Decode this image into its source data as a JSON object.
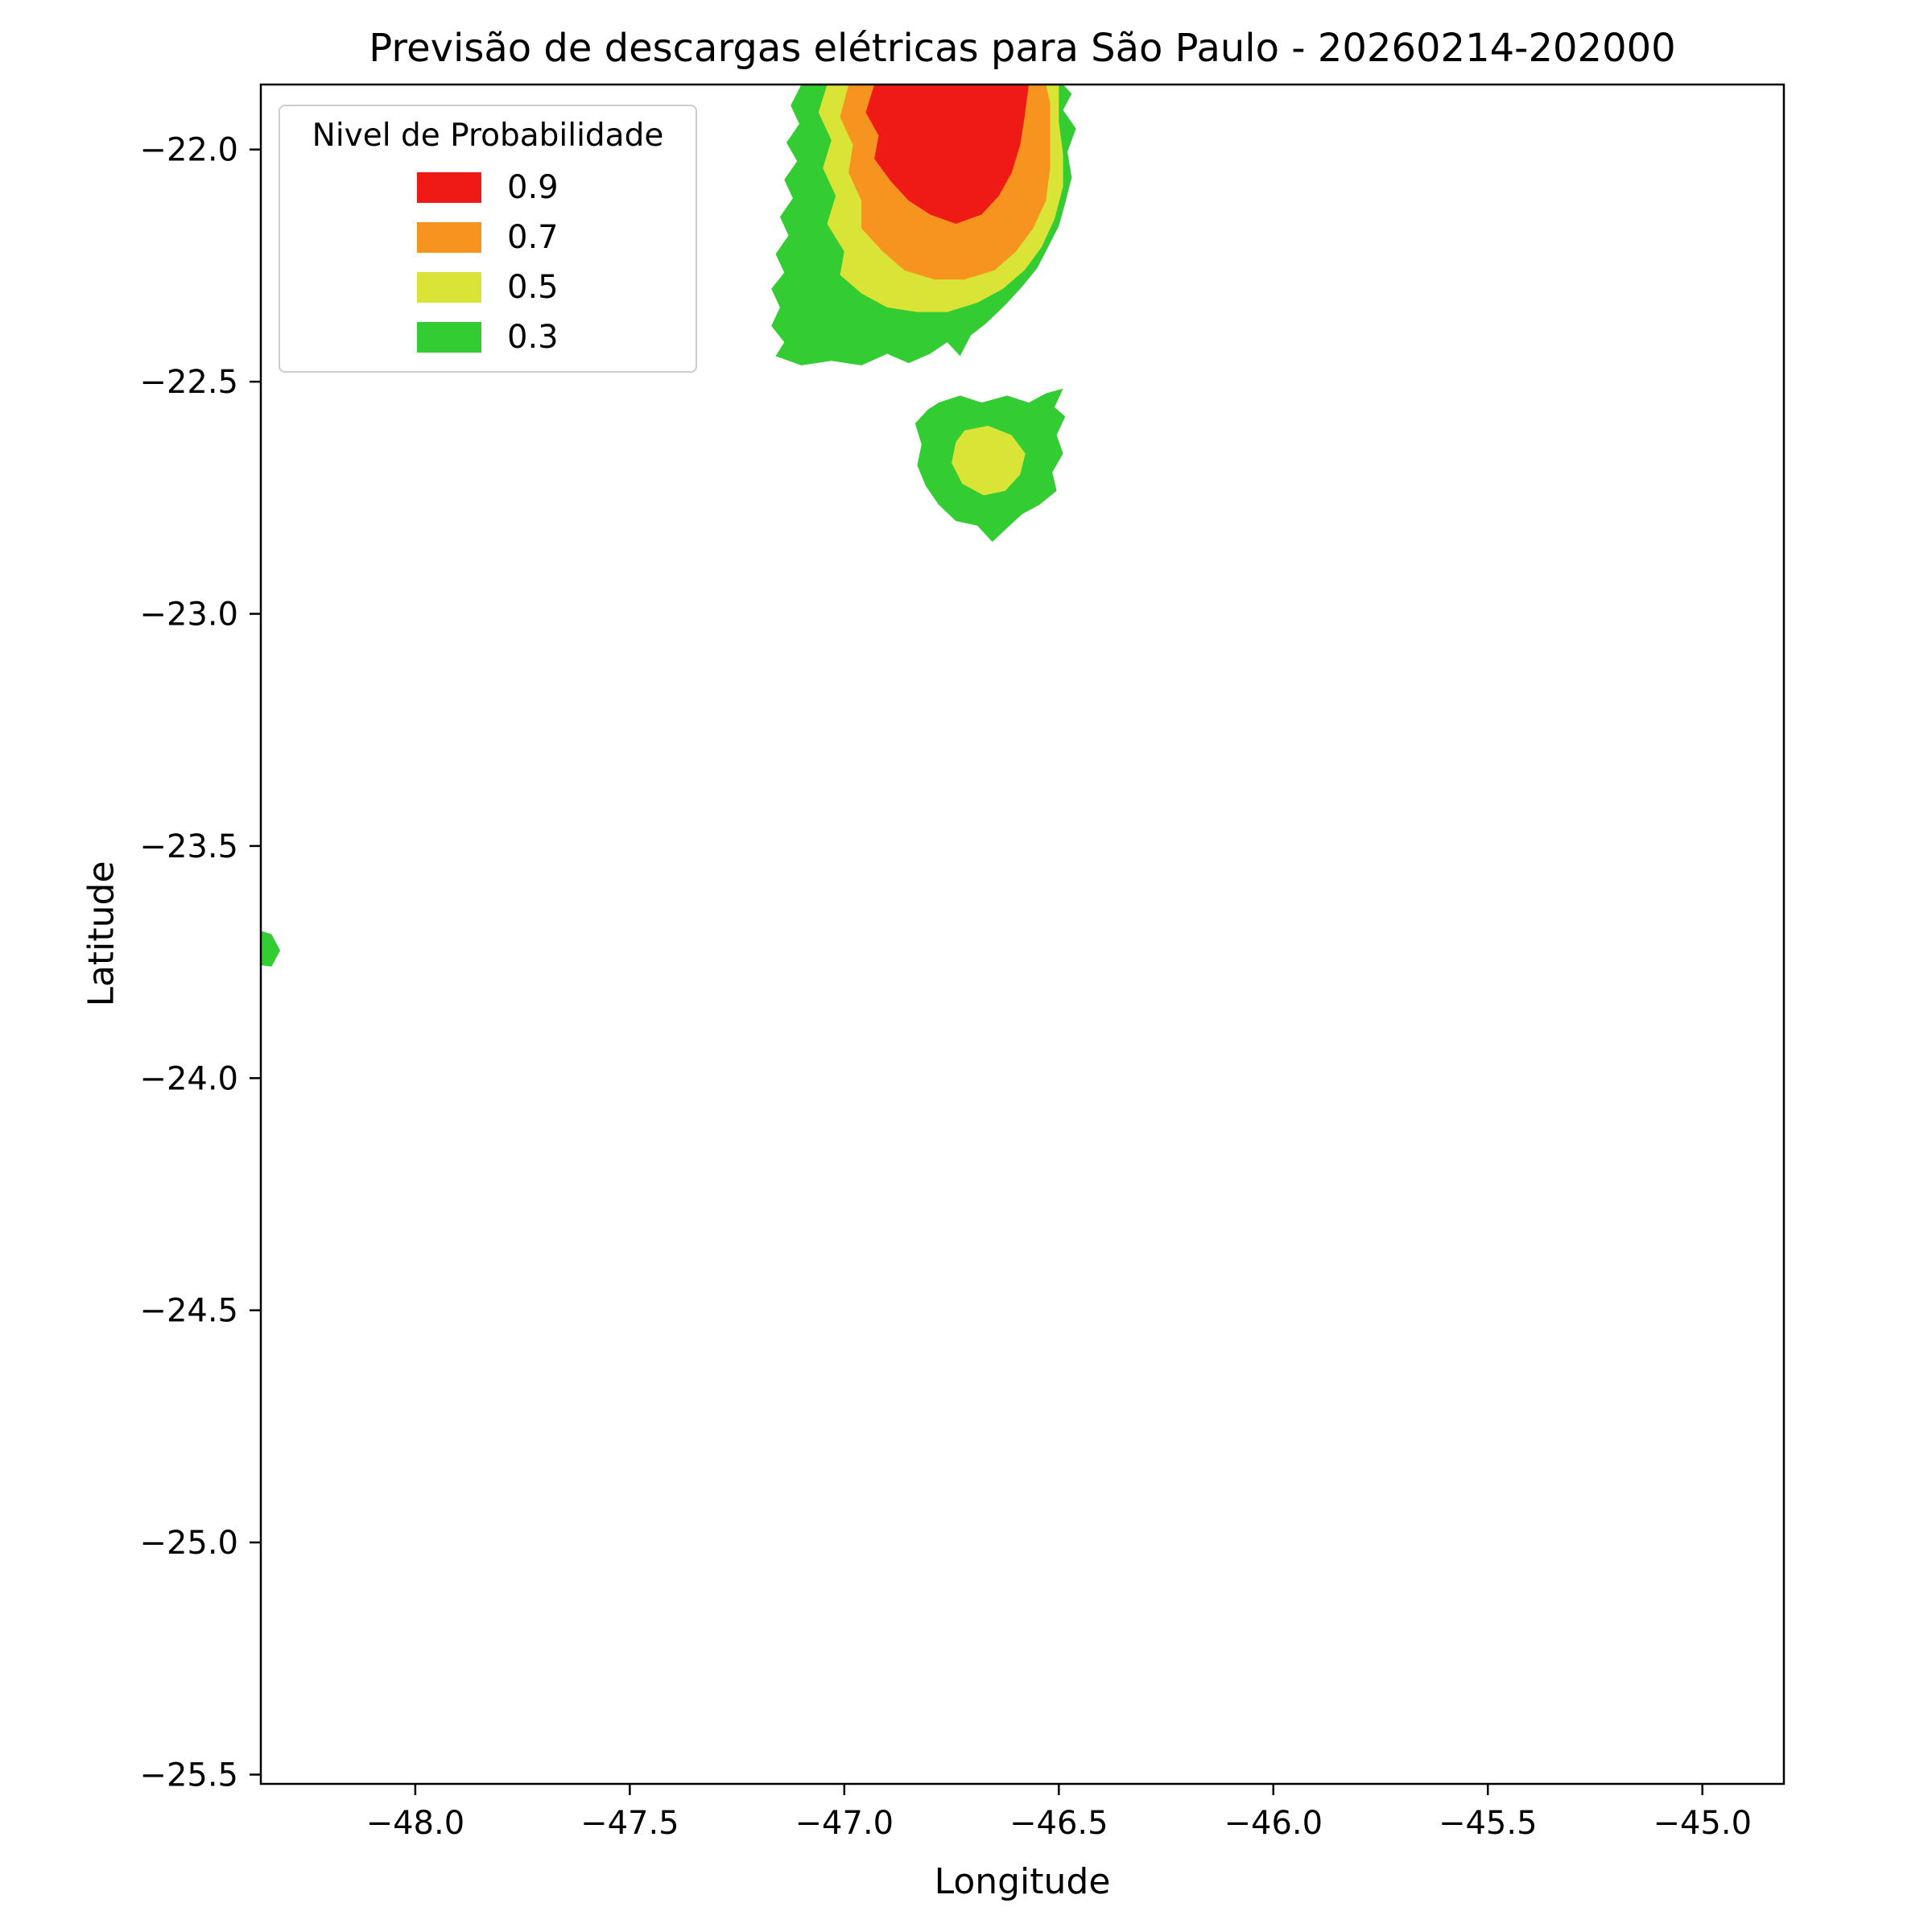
{
  "legend": {
    "title": "Nivel de Probabilidade",
    "position": "upper left",
    "items": [
      {
        "label": "0.9",
        "color": "#ef1a15"
      },
      {
        "label": "0.7",
        "color": "#f7941f"
      },
      {
        "label": "0.5",
        "color": "#d9e437"
      },
      {
        "label": "0.3",
        "color": "#33cc33"
      }
    ]
  },
  "chart_data": {
    "type": "area",
    "subtype": "filled_contour_map",
    "title": "Previsão de descargas elétricas para São Paulo - 20260214-202000",
    "xlabel": "Longitude",
    "ylabel": "Latitude",
    "xlim": [
      -48.36,
      -44.81
    ],
    "ylim": [
      -25.52,
      -21.86
    ],
    "grid": false,
    "frame_color": "#000000",
    "levels": [
      0.3,
      0.5,
      0.7,
      0.9
    ],
    "xticks": [
      {
        "v": -48.0,
        "label": "−48.0"
      },
      {
        "v": -47.5,
        "label": "−47.5"
      },
      {
        "v": -47.0,
        "label": "−47.0"
      },
      {
        "v": -46.5,
        "label": "−46.5"
      },
      {
        "v": -46.0,
        "label": "−46.0"
      },
      {
        "v": -45.5,
        "label": "−45.5"
      },
      {
        "v": -45.0,
        "label": "−45.0"
      }
    ],
    "yticks": [
      {
        "v": -22.0,
        "label": "−22.0"
      },
      {
        "v": -22.5,
        "label": "−22.5"
      },
      {
        "v": -23.0,
        "label": "−23.0"
      },
      {
        "v": -23.5,
        "label": "−23.5"
      },
      {
        "v": -24.0,
        "label": "−24.0"
      },
      {
        "v": -24.5,
        "label": "−24.5"
      },
      {
        "v": -25.0,
        "label": "−25.0"
      },
      {
        "v": -25.5,
        "label": "−25.5"
      }
    ],
    "regions": [
      {
        "name": "main-cell-p03",
        "level": 0.3,
        "color": "#33cc33",
        "points": [
          [
            -47.1,
            -21.86
          ],
          [
            -47.125,
            -21.905
          ],
          [
            -47.105,
            -21.945
          ],
          [
            -47.135,
            -21.985
          ],
          [
            -47.11,
            -22.025
          ],
          [
            -47.14,
            -22.065
          ],
          [
            -47.12,
            -22.105
          ],
          [
            -47.15,
            -22.145
          ],
          [
            -47.13,
            -22.185
          ],
          [
            -47.16,
            -22.225
          ],
          [
            -47.14,
            -22.265
          ],
          [
            -47.17,
            -22.3
          ],
          [
            -47.15,
            -22.34
          ],
          [
            -47.17,
            -22.38
          ],
          [
            -47.14,
            -22.415
          ],
          [
            -47.16,
            -22.445
          ],
          [
            -47.1,
            -22.465
          ],
          [
            -47.03,
            -22.455
          ],
          [
            -46.96,
            -22.465
          ],
          [
            -46.9,
            -22.44
          ],
          [
            -46.85,
            -22.46
          ],
          [
            -46.8,
            -22.44
          ],
          [
            -46.76,
            -22.415
          ],
          [
            -46.73,
            -22.445
          ],
          [
            -46.705,
            -22.4
          ],
          [
            -46.67,
            -22.375
          ],
          [
            -46.625,
            -22.335
          ],
          [
            -46.585,
            -22.295
          ],
          [
            -46.55,
            -22.255
          ],
          [
            -46.525,
            -22.21
          ],
          [
            -46.5,
            -22.165
          ],
          [
            -46.485,
            -22.115
          ],
          [
            -46.47,
            -22.06
          ],
          [
            -46.48,
            -22.005
          ],
          [
            -46.46,
            -21.955
          ],
          [
            -46.49,
            -21.915
          ],
          [
            -46.47,
            -21.88
          ],
          [
            -46.49,
            -21.86
          ]
        ]
      },
      {
        "name": "main-cell-p05",
        "level": 0.5,
        "color": "#d9e437",
        "points": [
          [
            -47.04,
            -21.86
          ],
          [
            -47.06,
            -21.92
          ],
          [
            -47.03,
            -21.98
          ],
          [
            -47.05,
            -22.04
          ],
          [
            -47.02,
            -22.1
          ],
          [
            -47.04,
            -22.16
          ],
          [
            -47.0,
            -22.22
          ],
          [
            -47.01,
            -22.27
          ],
          [
            -46.96,
            -22.31
          ],
          [
            -46.9,
            -22.34
          ],
          [
            -46.83,
            -22.35
          ],
          [
            -46.76,
            -22.35
          ],
          [
            -46.69,
            -22.33
          ],
          [
            -46.63,
            -22.3
          ],
          [
            -46.58,
            -22.26
          ],
          [
            -46.54,
            -22.21
          ],
          [
            -46.51,
            -22.15
          ],
          [
            -46.49,
            -22.08
          ],
          [
            -46.49,
            -22.01
          ],
          [
            -46.5,
            -21.94
          ],
          [
            -46.5,
            -21.86
          ]
        ]
      },
      {
        "name": "main-cell-p07",
        "level": 0.7,
        "color": "#f7941f",
        "points": [
          [
            -46.99,
            -21.86
          ],
          [
            -47.01,
            -21.93
          ],
          [
            -46.98,
            -21.99
          ],
          [
            -46.99,
            -22.05
          ],
          [
            -46.96,
            -22.11
          ],
          [
            -46.96,
            -22.17
          ],
          [
            -46.91,
            -22.22
          ],
          [
            -46.86,
            -22.26
          ],
          [
            -46.79,
            -22.28
          ],
          [
            -46.72,
            -22.28
          ],
          [
            -46.65,
            -22.26
          ],
          [
            -46.6,
            -22.22
          ],
          [
            -46.56,
            -22.17
          ],
          [
            -46.53,
            -22.11
          ],
          [
            -46.52,
            -22.04
          ],
          [
            -46.52,
            -21.97
          ],
          [
            -46.52,
            -21.9
          ],
          [
            -46.53,
            -21.86
          ]
        ]
      },
      {
        "name": "main-cell-p09",
        "level": 0.9,
        "color": "#ef1a15",
        "points": [
          [
            -46.93,
            -21.86
          ],
          [
            -46.95,
            -21.92
          ],
          [
            -46.92,
            -21.97
          ],
          [
            -46.93,
            -22.02
          ],
          [
            -46.89,
            -22.07
          ],
          [
            -46.85,
            -22.11
          ],
          [
            -46.8,
            -22.14
          ],
          [
            -46.74,
            -22.16
          ],
          [
            -46.68,
            -22.14
          ],
          [
            -46.64,
            -22.1
          ],
          [
            -46.61,
            -22.05
          ],
          [
            -46.59,
            -21.99
          ],
          [
            -46.58,
            -21.93
          ],
          [
            -46.57,
            -21.86
          ]
        ]
      },
      {
        "name": "secondary-cell-p03",
        "level": 0.3,
        "color": "#33cc33",
        "points": [
          [
            -46.78,
            -22.545
          ],
          [
            -46.73,
            -22.53
          ],
          [
            -46.68,
            -22.545
          ],
          [
            -46.62,
            -22.53
          ],
          [
            -46.57,
            -22.545
          ],
          [
            -46.53,
            -22.525
          ],
          [
            -46.49,
            -22.515
          ],
          [
            -46.51,
            -22.555
          ],
          [
            -46.485,
            -22.575
          ],
          [
            -46.505,
            -22.615
          ],
          [
            -46.49,
            -22.655
          ],
          [
            -46.515,
            -22.695
          ],
          [
            -46.505,
            -22.735
          ],
          [
            -46.545,
            -22.765
          ],
          [
            -46.585,
            -22.785
          ],
          [
            -46.62,
            -22.815
          ],
          [
            -46.655,
            -22.845
          ],
          [
            -46.69,
            -22.81
          ],
          [
            -46.74,
            -22.8
          ],
          [
            -46.78,
            -22.765
          ],
          [
            -46.81,
            -22.725
          ],
          [
            -46.83,
            -22.68
          ],
          [
            -46.82,
            -22.635
          ],
          [
            -46.835,
            -22.59
          ],
          [
            -46.805,
            -22.56
          ]
        ]
      },
      {
        "name": "secondary-cell-p05",
        "level": 0.5,
        "color": "#d9e437",
        "points": [
          [
            -46.72,
            -22.605
          ],
          [
            -46.665,
            -22.595
          ],
          [
            -46.61,
            -22.615
          ],
          [
            -46.578,
            -22.655
          ],
          [
            -46.59,
            -22.7
          ],
          [
            -46.625,
            -22.735
          ],
          [
            -46.675,
            -22.745
          ],
          [
            -46.725,
            -22.72
          ],
          [
            -46.75,
            -22.675
          ],
          [
            -46.74,
            -22.63
          ]
        ]
      },
      {
        "name": "west-speck-p03",
        "level": 0.3,
        "color": "#33cc33",
        "points": [
          [
            -48.37,
            -23.68
          ],
          [
            -48.335,
            -23.69
          ],
          [
            -48.315,
            -23.725
          ],
          [
            -48.335,
            -23.76
          ],
          [
            -48.37,
            -23.755
          ]
        ]
      }
    ]
  }
}
